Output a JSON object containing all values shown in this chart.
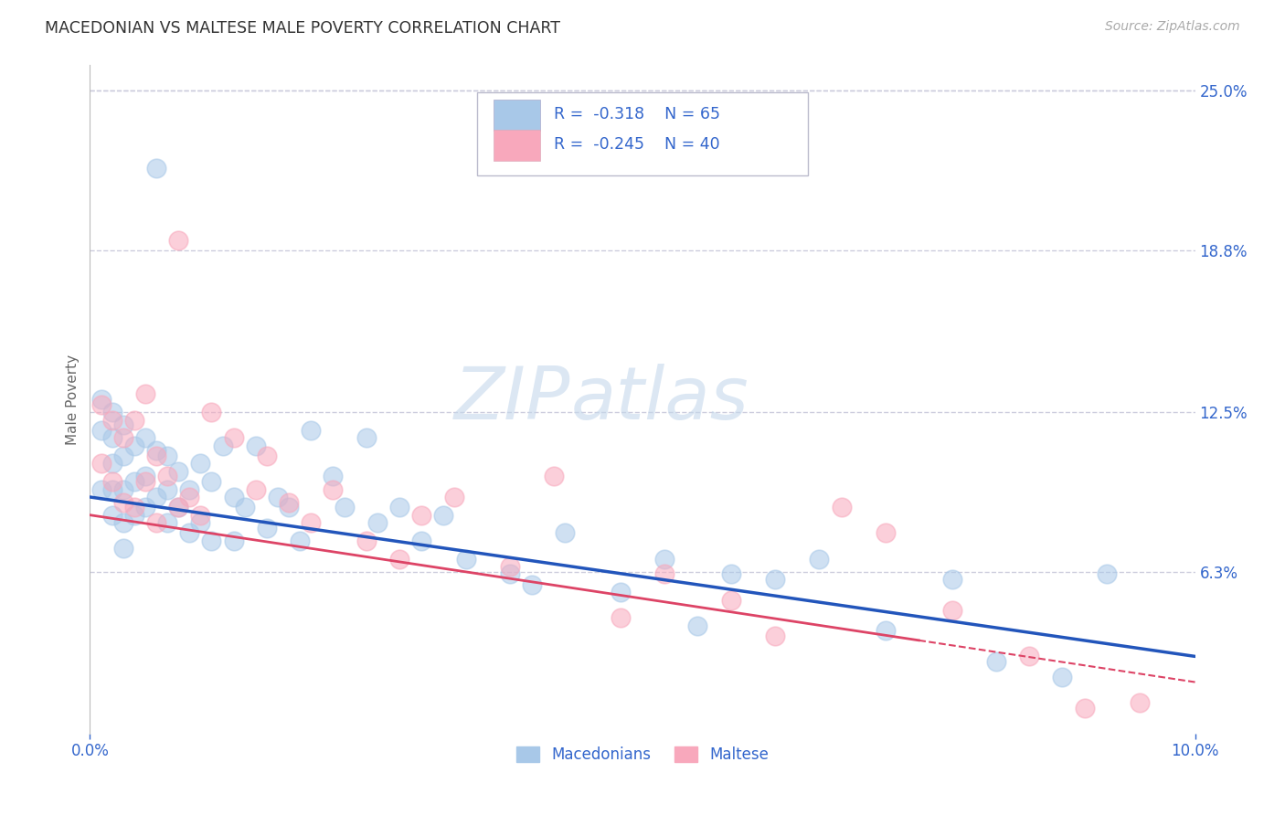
{
  "title": "MACEDONIAN VS MALTESE MALE POVERTY CORRELATION CHART",
  "source": "Source: ZipAtlas.com",
  "ylabel": "Male Poverty",
  "xlim": [
    0,
    0.1
  ],
  "ylim": [
    0,
    0.26
  ],
  "ytick_labels_right": [
    "25.0%",
    "18.8%",
    "12.5%",
    "6.3%"
  ],
  "ytick_vals_right": [
    0.25,
    0.188,
    0.125,
    0.063
  ],
  "macedonian_color": "#A8C8E8",
  "maltese_color": "#F8A8BC",
  "macedonian_line_color": "#2255BB",
  "maltese_line_color": "#DD4466",
  "legend_text_color": "#3366CC",
  "title_color": "#333333",
  "background_color": "#FFFFFF",
  "grid_color": "#CCCCDD",
  "R_mac": -0.318,
  "N_mac": 65,
  "R_malt": -0.245,
  "N_malt": 40,
  "mac_trend_x0": 0.0,
  "mac_trend_y0": 0.092,
  "mac_trend_x1": 0.1,
  "mac_trend_y1": 0.03,
  "malt_trend_x0": 0.0,
  "malt_trend_y0": 0.085,
  "malt_trend_x1": 0.1,
  "malt_trend_y1": 0.02,
  "macedonians_x": [
    0.001,
    0.001,
    0.001,
    0.002,
    0.002,
    0.002,
    0.002,
    0.002,
    0.003,
    0.003,
    0.003,
    0.003,
    0.003,
    0.004,
    0.004,
    0.004,
    0.005,
    0.005,
    0.005,
    0.006,
    0.006,
    0.006,
    0.007,
    0.007,
    0.007,
    0.008,
    0.008,
    0.009,
    0.009,
    0.01,
    0.01,
    0.011,
    0.011,
    0.012,
    0.013,
    0.013,
    0.014,
    0.015,
    0.016,
    0.017,
    0.018,
    0.019,
    0.02,
    0.022,
    0.023,
    0.025,
    0.026,
    0.028,
    0.03,
    0.032,
    0.034,
    0.038,
    0.04,
    0.043,
    0.048,
    0.052,
    0.055,
    0.058,
    0.062,
    0.066,
    0.072,
    0.078,
    0.082,
    0.088,
    0.092
  ],
  "macedonians_y": [
    0.13,
    0.118,
    0.095,
    0.125,
    0.115,
    0.105,
    0.095,
    0.085,
    0.12,
    0.108,
    0.095,
    0.082,
    0.072,
    0.112,
    0.098,
    0.085,
    0.115,
    0.1,
    0.088,
    0.22,
    0.11,
    0.092,
    0.108,
    0.095,
    0.082,
    0.102,
    0.088,
    0.095,
    0.078,
    0.105,
    0.082,
    0.098,
    0.075,
    0.112,
    0.092,
    0.075,
    0.088,
    0.112,
    0.08,
    0.092,
    0.088,
    0.075,
    0.118,
    0.1,
    0.088,
    0.115,
    0.082,
    0.088,
    0.075,
    0.085,
    0.068,
    0.062,
    0.058,
    0.078,
    0.055,
    0.068,
    0.042,
    0.062,
    0.06,
    0.068,
    0.04,
    0.06,
    0.028,
    0.022,
    0.062
  ],
  "maltese_x": [
    0.001,
    0.001,
    0.002,
    0.002,
    0.003,
    0.003,
    0.004,
    0.004,
    0.005,
    0.005,
    0.006,
    0.006,
    0.007,
    0.008,
    0.008,
    0.009,
    0.01,
    0.011,
    0.013,
    0.015,
    0.016,
    0.018,
    0.02,
    0.022,
    0.025,
    0.028,
    0.03,
    0.033,
    0.038,
    0.042,
    0.048,
    0.052,
    0.058,
    0.062,
    0.068,
    0.072,
    0.078,
    0.085,
    0.09,
    0.095
  ],
  "maltese_y": [
    0.128,
    0.105,
    0.122,
    0.098,
    0.115,
    0.09,
    0.122,
    0.088,
    0.132,
    0.098,
    0.108,
    0.082,
    0.1,
    0.192,
    0.088,
    0.092,
    0.085,
    0.125,
    0.115,
    0.095,
    0.108,
    0.09,
    0.082,
    0.095,
    0.075,
    0.068,
    0.085,
    0.092,
    0.065,
    0.1,
    0.045,
    0.062,
    0.052,
    0.038,
    0.088,
    0.078,
    0.048,
    0.03,
    0.01,
    0.012
  ]
}
